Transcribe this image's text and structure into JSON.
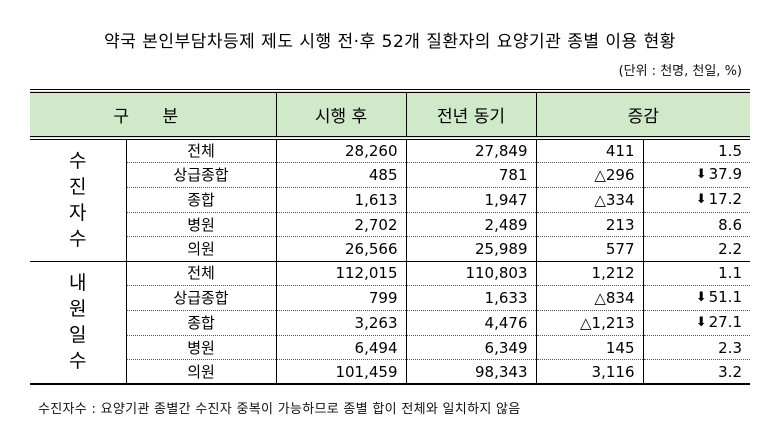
{
  "title": "약국 본인부담차등제 제도 시행 전·후 52개 질환자의 요양기관 종별 이용 현황",
  "unit": "(단위 : 천명, 천일, %)",
  "headers": {
    "category": "구 분",
    "after": "시행 후",
    "prev": "전년 동기",
    "change": "증감"
  },
  "sections": [
    {
      "label_chars": [
        "수",
        "진",
        "자",
        "수"
      ],
      "rows": [
        {
          "name": "전체",
          "after": "28,260",
          "prev": "27,849",
          "diff": "411",
          "rate": "1.5",
          "down": false
        },
        {
          "name": "상급종합",
          "after": "485",
          "prev": "781",
          "diff": "△296",
          "rate": "37.9",
          "down": true
        },
        {
          "name": "종합",
          "after": "1,613",
          "prev": "1,947",
          "diff": "△334",
          "rate": "17.2",
          "down": true
        },
        {
          "name": "병원",
          "after": "2,702",
          "prev": "2,489",
          "diff": "213",
          "rate": "8.6",
          "down": false
        },
        {
          "name": "의원",
          "after": "26,566",
          "prev": "25,989",
          "diff": "577",
          "rate": "2.2",
          "down": false
        }
      ]
    },
    {
      "label_chars": [
        "내",
        "원",
        "일",
        "수"
      ],
      "rows": [
        {
          "name": "전체",
          "after": "112,015",
          "prev": "110,803",
          "diff": "1,212",
          "rate": "1.1",
          "down": false
        },
        {
          "name": "상급종합",
          "after": "799",
          "prev": "1,633",
          "diff": "△834",
          "rate": "51.1",
          "down": true
        },
        {
          "name": "종합",
          "after": "3,263",
          "prev": "4,476",
          "diff": "△1,213",
          "rate": "27.1",
          "down": true
        },
        {
          "name": "병원",
          "after": "6,494",
          "prev": "6,349",
          "diff": "145",
          "rate": "2.3",
          "down": false
        },
        {
          "name": "의원",
          "after": "101,459",
          "prev": "98,343",
          "diff": "3,116",
          "rate": "3.2",
          "down": false
        }
      ]
    }
  ],
  "arrow_glyph": "⬇",
  "note": "수진자수 : 요양기관 종별간 수진자 중복이 가능하므로 종별 합이 전체와 일치하지 않음"
}
